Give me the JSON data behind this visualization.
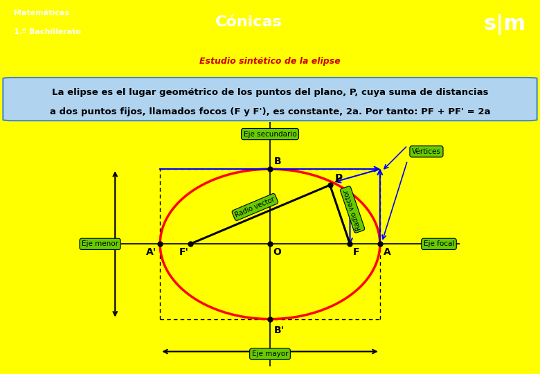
{
  "title": "Cónicas",
  "subtitle": "Estudio sintético de la elipse",
  "header_bg": "#FFFF00",
  "subtitle_bg": "#87CEEB",
  "logo_bg": "#CC0000",
  "definition_text_line1": "La elipse es el lugar geométrico de los puntos del plano, P, cuya suma de distancias",
  "definition_text_line2": "a dos puntos fijos, llamados focos (F y F'), es constante, 2a. Por tanto: PF + PF' = 2a",
  "definition_bg": "#B0D4F0",
  "diagram_bg": "#FFFFFF",
  "ellipse_a": 2.2,
  "ellipse_b": 1.5,
  "focus_c": 1.6,
  "point_P": [
    1.2,
    1.18
  ],
  "label_A": "A",
  "label_Ap": "A'",
  "label_B": "B",
  "label_Bp": "B'",
  "label_F": "F",
  "label_Fp": "F'",
  "label_O": "O",
  "label_P": "P",
  "green_label_bg": "#66CC00",
  "eje_secundario": "Eje secundario",
  "eje_mayor": "Eje mayor",
  "eje_menor": "Eje menor",
  "eje_focal": "Eje focal",
  "vertices_label": "Vértices",
  "radio_vector1": "Radio vector",
  "radio_vector2": "Radio vector"
}
